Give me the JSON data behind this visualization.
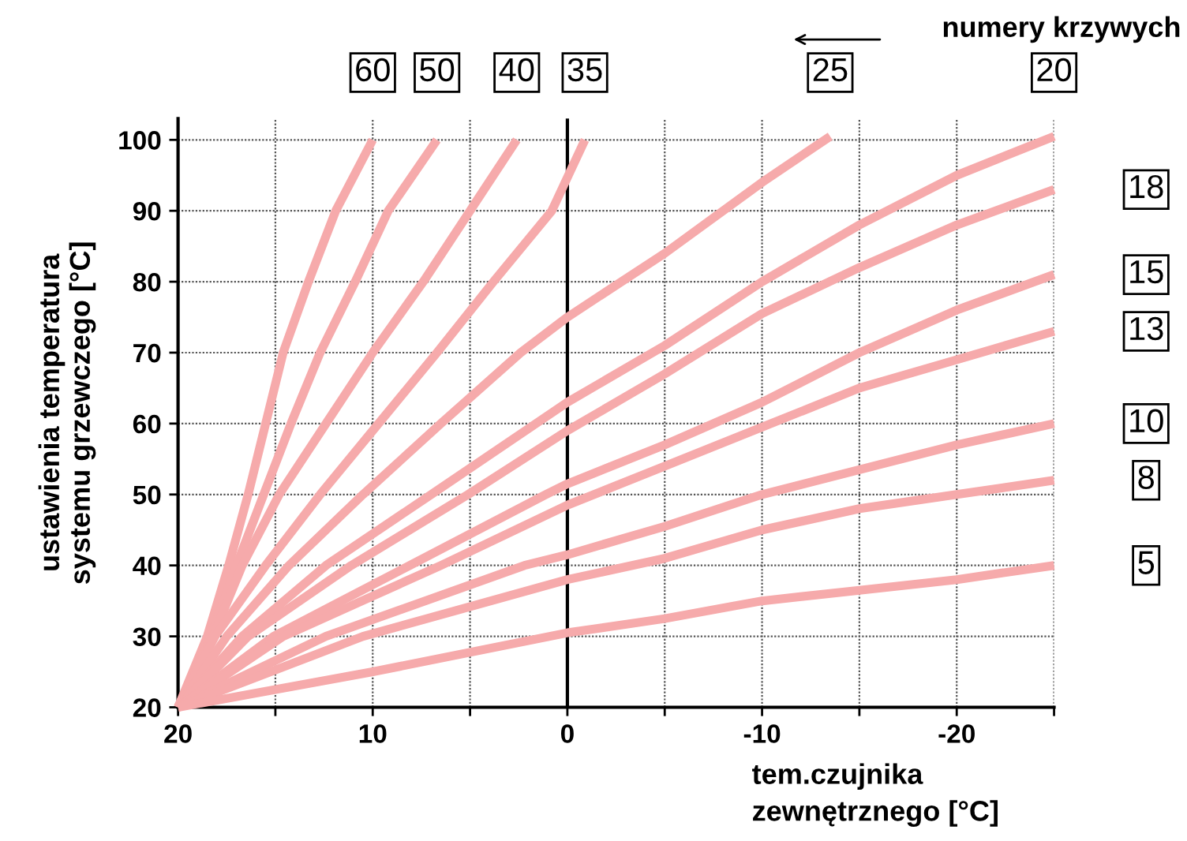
{
  "chart_data": {
    "type": "line",
    "xlabel": "tem.czujnika\nzewnętrznego [°C]",
    "ylabel": "ustawienia temperatura\nsystemu grzewczego [°C]",
    "annotations": [
      "numery krzywych"
    ],
    "xlim": [
      20,
      -25
    ],
    "ylim": [
      20,
      103
    ],
    "xticks": [
      20,
      {
        "value": 15,
        "label": null
      },
      10,
      {
        "value": 5,
        "label": null
      },
      0,
      {
        "value": -5,
        "label": null
      },
      -10,
      {
        "value": -15,
        "label": null
      },
      -20,
      {
        "value": -25,
        "label": null
      }
    ],
    "yticks": [
      20,
      30,
      40,
      50,
      60,
      70,
      80,
      90,
      100
    ],
    "grid": true,
    "legend": false,
    "marker": "none",
    "line_style": "solid",
    "ref_lines": [
      {
        "axis": "x",
        "value": 0,
        "color": "#000000"
      }
    ],
    "series": [
      {
        "name": "60",
        "color": "#f6aaab",
        "x": [
          20,
          18.5,
          17.4,
          16.4,
          15.5,
          14.6,
          13.3,
          11.9,
          10
        ],
        "values": [
          20,
          30,
          40,
          50,
          60,
          70,
          80,
          90,
          100
        ]
      },
      {
        "name": "50",
        "color": "#f6aaab",
        "x": [
          20,
          18.3,
          17,
          15.6,
          14.2,
          12.7,
          10.9,
          9.2,
          6.7
        ],
        "values": [
          20,
          30,
          40,
          50,
          60,
          70,
          80,
          90,
          100
        ]
      },
      {
        "name": "40",
        "color": "#f6aaab",
        "x": [
          20,
          18.2,
          16.7,
          14.8,
          12.4,
          10,
          7.4,
          5,
          2.6
        ],
        "values": [
          20,
          30,
          40,
          50,
          60,
          70,
          80,
          90,
          100
        ]
      },
      {
        "name": "35",
        "color": "#f6aaab",
        "x": [
          20,
          18.1,
          15.5,
          12.7,
          9.7,
          6.7,
          3.8,
          0.8,
          -0.9
        ],
        "values": [
          20,
          30,
          40,
          50,
          60,
          70,
          80,
          90,
          100
        ]
      },
      {
        "name": "25",
        "color": "#f6aaab",
        "x": [
          20,
          17.5,
          14.3,
          10.5,
          6.5,
          2.4,
          0,
          -5,
          -10,
          -13.5
        ],
        "values": [
          20,
          30,
          40,
          50,
          60,
          70,
          75,
          84,
          94,
          100.5
        ]
      },
      {
        "name": "20",
        "color": "#f6aaab",
        "x": [
          20,
          16.7,
          12.4,
          7,
          0,
          -5,
          -10,
          -15,
          -20,
          -25
        ],
        "values": [
          20,
          30,
          40,
          50,
          63,
          71,
          80,
          88,
          95,
          100.5
        ]
      },
      {
        "name": "18",
        "color": "#f6aaab",
        "x": [
          20,
          16.4,
          11.1,
          5.1,
          0,
          -5,
          -10,
          -15,
          -20,
          -25
        ],
        "values": [
          20,
          30,
          40,
          50,
          59,
          67,
          75.5,
          82,
          88,
          93
        ]
      },
      {
        "name": "15",
        "color": "#f6aaab",
        "x": [
          20,
          15.1,
          8.1,
          1.1,
          0,
          -5,
          -10,
          -15,
          -20,
          -25
        ],
        "values": [
          20,
          30,
          40,
          50,
          51.5,
          57,
          63,
          70,
          76,
          81
        ]
      },
      {
        "name": "13",
        "color": "#f6aaab",
        "x": [
          20,
          14.6,
          6.5,
          0,
          -5,
          -10,
          -15,
          -20,
          -25
        ],
        "values": [
          20,
          30,
          40,
          48.5,
          54,
          59.5,
          65,
          69,
          73
        ]
      },
      {
        "name": "10",
        "color": "#f6aaab",
        "x": [
          20,
          12.4,
          2.2,
          0,
          -5,
          -10,
          -15,
          -20,
          -25
        ],
        "values": [
          20,
          30,
          40,
          41.5,
          45.5,
          50,
          53.5,
          57,
          60
        ]
      },
      {
        "name": "8",
        "color": "#f6aaab",
        "x": [
          20,
          10.5,
          0,
          -5,
          -10,
          -15,
          -20,
          -25
        ],
        "values": [
          20,
          30,
          38,
          41,
          45,
          48,
          50,
          52
        ]
      },
      {
        "name": "5",
        "color": "#f6aaab",
        "x": [
          20,
          10,
          0,
          -5,
          -10,
          -15,
          -20,
          -25
        ],
        "values": [
          20,
          25,
          30.5,
          32.5,
          35,
          36.5,
          38,
          40
        ]
      }
    ]
  }
}
